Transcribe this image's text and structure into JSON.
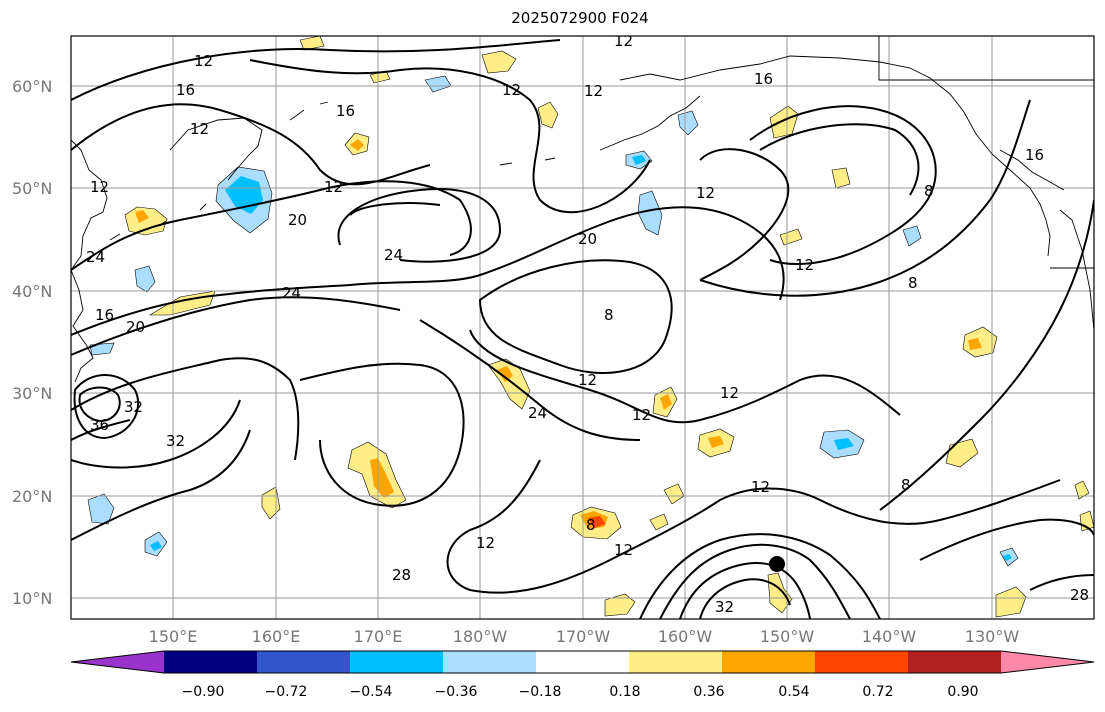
{
  "title": "2025072900 F024",
  "lat_labels": [
    "60°N",
    "50°N",
    "40°N",
    "30°N",
    "20°N",
    "10°N"
  ],
  "lon_labels": [
    "150°E",
    "160°E",
    "170°E",
    "180°W",
    "170°W",
    "160°W",
    "150°W",
    "140°W",
    "130°W"
  ],
  "colorbar": {
    "ticks": [
      "−0.90",
      "−0.72",
      "−0.54",
      "−0.36",
      "−0.18",
      "0.18",
      "0.36",
      "0.54",
      "0.72",
      "0.90"
    ],
    "colors": [
      "#9933cc",
      "#000080",
      "#3355cc",
      "#00bfff",
      "#aaddff",
      "#ffffff",
      "#ffee88",
      "#ffa500",
      "#ff4500",
      "#b22222",
      "#ff88aa"
    ]
  },
  "contour_labels": [
    "12",
    "12",
    "12",
    "12",
    "16",
    "16",
    "16",
    "12",
    "12",
    "12",
    "8",
    "20",
    "20",
    "20",
    "24",
    "24",
    "24",
    "24",
    "8",
    "12",
    "12",
    "12",
    "12",
    "8",
    "12",
    "8",
    "16",
    "32",
    "36",
    "32",
    "32",
    "28",
    "12",
    "16",
    "12",
    "28",
    "8",
    "12"
  ],
  "marker": "storm-center"
}
